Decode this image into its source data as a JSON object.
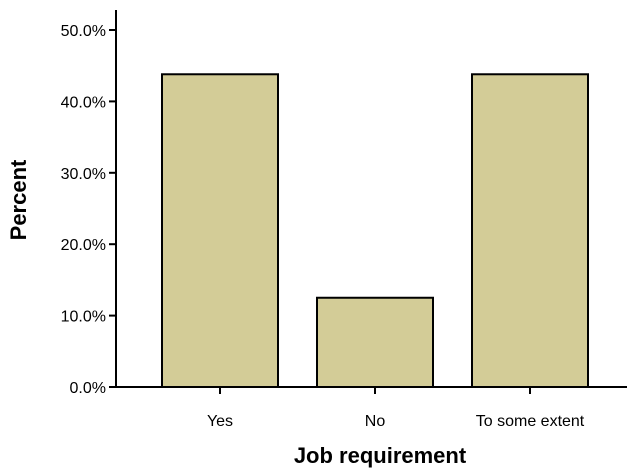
{
  "chart_data": {
    "type": "bar",
    "categories": [
      "Yes",
      "No",
      "To some extent"
    ],
    "values": [
      43.8,
      12.5,
      43.8
    ],
    "xlabel": "Job requirement",
    "ylabel": "Percent",
    "ylim": [
      0,
      50
    ],
    "yticks": [
      0,
      10,
      20,
      30,
      40,
      50
    ],
    "ytick_labels": [
      "0.0%",
      "10.0%",
      "20.0%",
      "30.0%",
      "40.0%",
      "50.0%"
    ],
    "grid": false,
    "legend": "none",
    "bar_color": "#d3cc97",
    "bar_edge_color": "#000000"
  }
}
